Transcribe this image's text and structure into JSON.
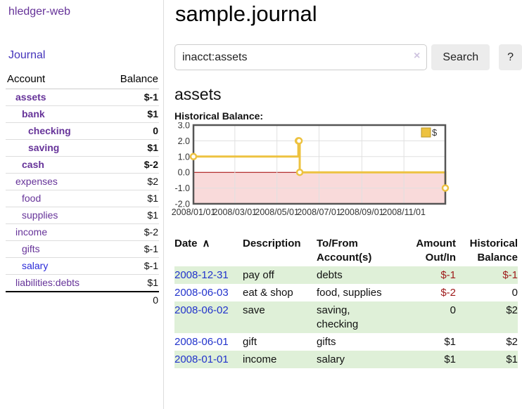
{
  "app": {
    "title": "hledger-web"
  },
  "icons": {
    "sort_asc": "∧",
    "clear": "×"
  },
  "colors": {
    "link_purple": "#663399",
    "link_blue": "#2a2ad8",
    "negative_strong": "#9e1a1a",
    "negative_muted": "#b87878",
    "row_green": "#dff0d8"
  },
  "sidebar": {
    "journal_label": "Journal",
    "accounts": {
      "header_account": "Account",
      "header_balance": "Balance",
      "rows": [
        {
          "name": "assets",
          "balance": "$-1",
          "indent": 1,
          "bold": true,
          "balance_style": "neg-strong"
        },
        {
          "name": "bank",
          "balance": "$1",
          "indent": 2,
          "bold": true,
          "balance_style": "normal"
        },
        {
          "name": "checking",
          "balance": "0",
          "indent": 3,
          "bold": true,
          "balance_style": "normal"
        },
        {
          "name": "saving",
          "balance": "$1",
          "indent": 3,
          "bold": true,
          "balance_style": "normal"
        },
        {
          "name": "cash",
          "balance": "$-2",
          "indent": 2,
          "bold": true,
          "balance_style": "neg-strong"
        },
        {
          "name": "expenses",
          "balance": "$2",
          "indent": 1,
          "bold": false,
          "balance_style": "normal"
        },
        {
          "name": "food",
          "balance": "$1",
          "indent": 2,
          "bold": false,
          "balance_style": "normal"
        },
        {
          "name": "supplies",
          "balance": "$1",
          "indent": 2,
          "bold": false,
          "balance_style": "normal"
        },
        {
          "name": "income",
          "balance": "$-2",
          "indent": 1,
          "bold": false,
          "balance_style": "neg-muted"
        },
        {
          "name": "gifts",
          "balance": "$-1",
          "indent": 2,
          "bold": false,
          "balance_style": "neg-muted"
        },
        {
          "name": "salary",
          "balance": "$-1",
          "indent": 2,
          "bold": false,
          "balance_style": "neg-muted",
          "link_style": "unvisited"
        },
        {
          "name": "liabilities:debts",
          "balance": "$1",
          "indent": 1,
          "bold": false,
          "balance_style": "normal"
        }
      ],
      "total": "0"
    }
  },
  "main": {
    "title": "sample.journal",
    "search": {
      "value": "inacct:assets",
      "button_label": "Search",
      "help_label": "?"
    },
    "account_heading": "assets",
    "chart_label": "Historical Balance:"
  },
  "chart_data": {
    "type": "line",
    "step": true,
    "title": "Historical Balance",
    "legend": {
      "position": "top-right",
      "entries": [
        "$"
      ]
    },
    "x_range": [
      "2008-01-01",
      "2008-12-31"
    ],
    "ylim": [
      -2,
      3
    ],
    "y_ticks": [
      "3.0",
      "2.0",
      "1.0",
      "0.0",
      "-1.0",
      "-2.0"
    ],
    "x_ticks": [
      {
        "date": "2008-01-01",
        "label": "2008/01/01"
      },
      {
        "date": "2008-03-01",
        "label": "2008/03/01"
      },
      {
        "date": "2008-05-01",
        "label": "2008/05/01"
      },
      {
        "date": "2008-07-01",
        "label": "2008/07/01"
      },
      {
        "date": "2008-09-01",
        "label": "2008/09/01"
      },
      {
        "date": "2008-11-01",
        "label": "2008/11/01"
      }
    ],
    "series": [
      {
        "name": "$",
        "color": "#EDC240",
        "points": [
          {
            "x": "2008-01-01",
            "y": 1
          },
          {
            "x": "2008-06-01",
            "y": 2
          },
          {
            "x": "2008-06-02",
            "y": 2
          },
          {
            "x": "2008-06-03",
            "y": 0
          },
          {
            "x": "2008-12-31",
            "y": -1
          }
        ]
      }
    ],
    "grid": true,
    "grid_color": "#e0e0e0",
    "border_color": "#555555",
    "zero_line_color": "#a00000",
    "negative_fill": "#f9dada",
    "marker_fill": "#ffffff"
  },
  "register": {
    "headers": {
      "date": "Date",
      "description": "Description",
      "accounts": "To/From Account(s)",
      "amount": "Amount Out/In",
      "balance": "Historical Balance"
    },
    "rows": [
      {
        "date": "2008-12-31",
        "description": "pay off",
        "accounts": "debts",
        "amount": "$-1",
        "amount_negative": true,
        "balance": "$-1",
        "balance_negative": true
      },
      {
        "date": "2008-06-03",
        "description": "eat & shop",
        "accounts": "food, supplies",
        "amount": "$-2",
        "amount_negative": true,
        "balance": "0",
        "balance_negative": false
      },
      {
        "date": "2008-06-02",
        "description": "save",
        "accounts": "saving,\nchecking",
        "amount": "0",
        "amount_negative": false,
        "balance": "$2",
        "balance_negative": false
      },
      {
        "date": "2008-06-01",
        "description": "gift",
        "accounts": "gifts",
        "amount": "$1",
        "amount_negative": false,
        "balance": "$2",
        "balance_negative": false
      },
      {
        "date": "2008-01-01",
        "description": "income",
        "accounts": "salary",
        "amount": "$1",
        "amount_negative": false,
        "balance": "$1",
        "balance_negative": false
      }
    ]
  }
}
